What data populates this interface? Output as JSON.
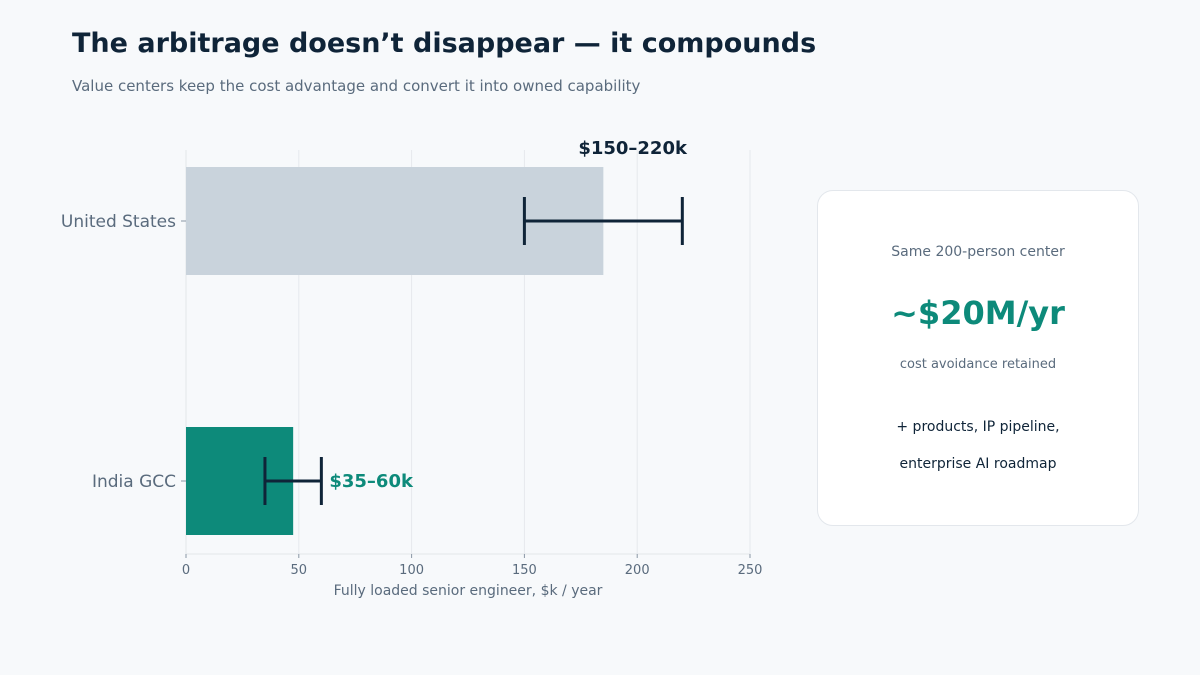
{
  "header": {
    "title": "The arbitrage doesn’t disappear — it compounds",
    "subtitle": "Value centers keep the cost advantage and convert it into owned capability"
  },
  "chart_data": {
    "type": "bar",
    "orientation": "horizontal",
    "categories": [
      "United States",
      "India GCC"
    ],
    "values": [
      185,
      47.5
    ],
    "error_ranges": [
      [
        150,
        220
      ],
      [
        35,
        60
      ]
    ],
    "data_labels": [
      "$150–220k",
      "$35–60k"
    ],
    "bar_colors": [
      "#c9d3dc",
      "#0d8a7a"
    ],
    "label_colors": [
      "#0f2438",
      "#0d8a7a"
    ],
    "error_color": "#0f2438",
    "xlabel": "Fully loaded senior engineer, $k / year",
    "ylabel": "",
    "xlim": [
      0,
      250
    ],
    "xticks": [
      0,
      50,
      100,
      150,
      200,
      250
    ],
    "grid": "vertical"
  },
  "card": {
    "caption": "Same 200-person center",
    "value": "~$20M/yr",
    "sub": "cost avoidance retained",
    "line1": "+ products, IP pipeline,",
    "line2": "enterprise AI roadmap"
  }
}
